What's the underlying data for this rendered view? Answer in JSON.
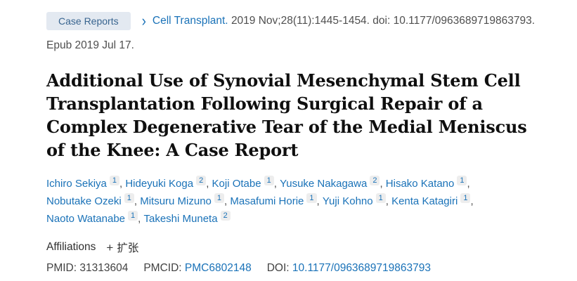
{
  "header": {
    "publication_type": "Case Reports",
    "journal_link": "Cell Transplant.",
    "citation": "2019 Nov;28(11):1445-1454. doi: 10.1177/0963689719863793.",
    "epub": "Epub 2019 Jul 17."
  },
  "icons": {
    "chevron_right": "›",
    "plus": "+"
  },
  "title": "Additional Use of Synovial Mesenchymal Stem Cell Transplantation Following Surgical Repair of a Complex Degenerative Tear of the Medial Meniscus of the Knee: A Case Report",
  "authors": [
    {
      "name": "Ichiro Sekiya",
      "sup": "1"
    },
    {
      "name": "Hideyuki Koga",
      "sup": "2"
    },
    {
      "name": "Koji Otabe",
      "sup": "1"
    },
    {
      "name": "Yusuke Nakagawa",
      "sup": "2"
    },
    {
      "name": "Hisako Katano",
      "sup": "1"
    },
    {
      "name": "Nobutake Ozeki",
      "sup": "1"
    },
    {
      "name": "Mitsuru Mizuno",
      "sup": "1"
    },
    {
      "name": "Masafumi Horie",
      "sup": "1"
    },
    {
      "name": "Yuji Kohno",
      "sup": "1"
    },
    {
      "name": "Kenta Katagiri",
      "sup": "1"
    },
    {
      "name": "Naoto Watanabe",
      "sup": "1"
    },
    {
      "name": "Takeshi Muneta",
      "sup": "2"
    }
  ],
  "affiliations": {
    "label": "Affiliations",
    "expand_label": "扩张"
  },
  "identifiers": {
    "pmid_label": "PMID:",
    "pmid": "31313604",
    "pmcid_label": "PMCID:",
    "pmcid": "PMC6802148",
    "doi_label": "DOI:",
    "doi": "10.1177/0963689719863793"
  },
  "colors": {
    "link_blue": "#1a72b8",
    "chip_bg": "#e3e9f1",
    "chip_text": "#38648f",
    "title_text": "#0f0f0f",
    "body_gray": "#4f4f4f",
    "badge_bg": "#ededed"
  }
}
